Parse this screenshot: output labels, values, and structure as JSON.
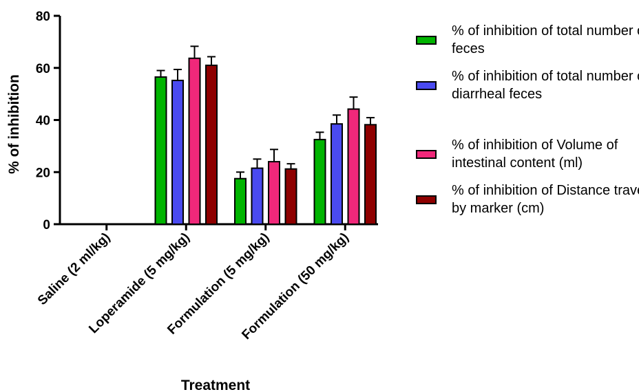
{
  "chart_data": {
    "type": "bar",
    "ylabel": "% of inhibition",
    "xlabel": "Treatment",
    "ylim": [
      0,
      80
    ],
    "yticks": [
      0,
      20,
      40,
      60,
      80
    ],
    "categories": [
      "Saline (2 ml/kg)",
      "Loperamide (5 mg/kg)",
      "Formulation (5 mg/kg)",
      "Formulation (50 mg/kg)"
    ],
    "series": [
      {
        "name": "% of inhibition of total number of feces",
        "color": "#00b400",
        "values": [
          0,
          56.5,
          17.5,
          32.5
        ],
        "errors": [
          0,
          2.5,
          2.5,
          2.8
        ]
      },
      {
        "name": "% of inhibition of total number of diarrheal feces",
        "color": "#4a4af0",
        "values": [
          0,
          55.2,
          21.5,
          38.5
        ],
        "errors": [
          0,
          4.2,
          3.5,
          3.4
        ]
      },
      {
        "name": "% of inhibition of Volume of intestinal content (ml)",
        "color": "#f0287a",
        "values": [
          0,
          63.7,
          24,
          44.2
        ],
        "errors": [
          0,
          4.6,
          4.7,
          4.6
        ]
      },
      {
        "name": "% of inhibition of Distance travelled by marker (cm)",
        "color": "#8e0000",
        "values": [
          0,
          61,
          21.2,
          38.2
        ],
        "errors": [
          0,
          3.3,
          2.0,
          2.7
        ]
      }
    ],
    "legend_position": "right",
    "grid": false
  }
}
